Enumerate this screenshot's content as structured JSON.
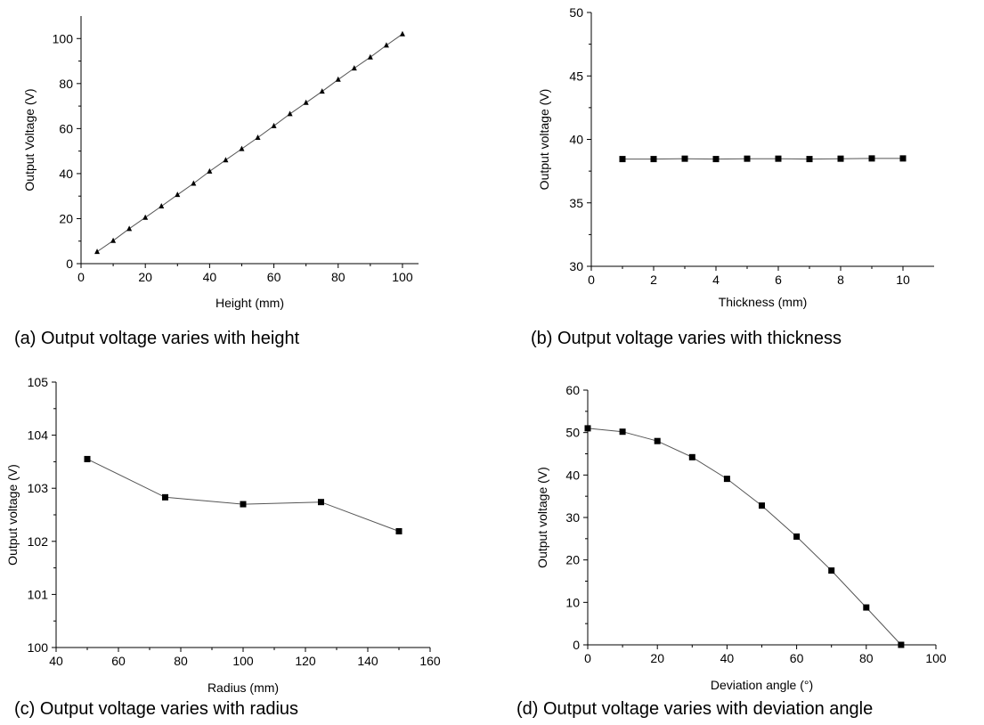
{
  "chart_data": [
    {
      "type": "line",
      "caption": "(a) Output voltage varies with height",
      "xlabel": "Height (mm)",
      "ylabel": "Output Voltage (V)",
      "xlim": [
        0,
        105
      ],
      "ylim": [
        0,
        110
      ],
      "xticks": [
        0,
        20,
        40,
        60,
        80,
        100
      ],
      "yticks": [
        0,
        20,
        40,
        60,
        80,
        100
      ],
      "marker": "triangle",
      "x": [
        5,
        10,
        15,
        20,
        25,
        30,
        35,
        40,
        45,
        50,
        55,
        60,
        65,
        70,
        75,
        80,
        85,
        90,
        95,
        100
      ],
      "y": [
        5.3,
        10.2,
        15.5,
        20.5,
        25.5,
        30.6,
        35.6,
        41,
        46,
        51,
        56,
        61.2,
        66.5,
        71.5,
        76.5,
        81.8,
        86.8,
        91.7,
        97,
        102
      ]
    },
    {
      "type": "line",
      "caption": "(b) Output voltage varies with thickness",
      "xlabel": "Thickness (mm)",
      "ylabel": "Output voltage (V)",
      "xlim": [
        0,
        11
      ],
      "ylim": [
        30,
        50
      ],
      "xticks": [
        0,
        2,
        4,
        6,
        8,
        10
      ],
      "yticks": [
        30,
        35,
        40,
        45,
        50
      ],
      "marker": "square",
      "x": [
        1,
        2,
        3,
        4,
        5,
        6,
        7,
        8,
        9,
        10
      ],
      "y": [
        38.45,
        38.45,
        38.48,
        38.45,
        38.48,
        38.48,
        38.45,
        38.48,
        38.5,
        38.5
      ]
    },
    {
      "type": "line",
      "caption": "(c) Output voltage varies with radius",
      "xlabel": "Radius (mm)",
      "ylabel": "Output voltage (V)",
      "xlim": [
        40,
        160
      ],
      "ylim": [
        100,
        105
      ],
      "xticks": [
        40,
        60,
        80,
        100,
        120,
        140,
        160
      ],
      "yticks": [
        100,
        101,
        102,
        103,
        104,
        105
      ],
      "marker": "square",
      "x": [
        50,
        75,
        100,
        125,
        150
      ],
      "y": [
        103.55,
        102.83,
        102.7,
        102.74,
        102.19
      ]
    },
    {
      "type": "line",
      "caption": "(d) Output voltage varies with deviation angle",
      "xlabel": "Deviation angle (°)",
      "ylabel": "Output voltage (V)",
      "xlim": [
        0,
        100
      ],
      "ylim": [
        0,
        60
      ],
      "xticks": [
        0,
        20,
        40,
        60,
        80,
        100
      ],
      "yticks": [
        0,
        10,
        20,
        30,
        40,
        50,
        60
      ],
      "marker": "square",
      "x": [
        0,
        10,
        20,
        30,
        40,
        50,
        60,
        70,
        80,
        90
      ],
      "y": [
        51,
        50.2,
        48,
        44.2,
        39.1,
        32.8,
        25.5,
        17.5,
        8.8,
        0
      ]
    }
  ]
}
